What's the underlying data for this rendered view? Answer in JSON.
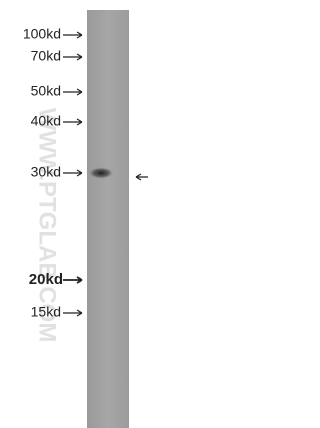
{
  "markers": [
    "100kd",
    "70kd",
    "50kd",
    "40kd",
    "30kd",
    "20kd",
    "15kd"
  ],
  "watermark": "WWW.PTGLAB.COM"
}
